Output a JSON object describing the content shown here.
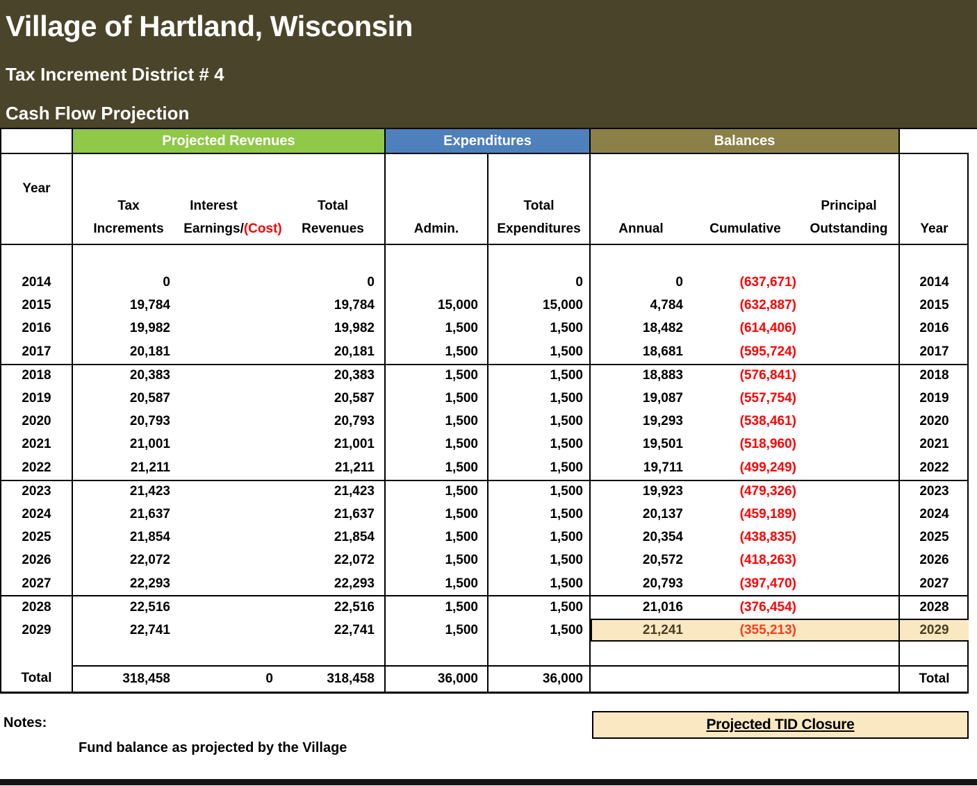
{
  "header": {
    "title": "Village of Hartland, Wisconsin",
    "subtitle1": "Tax Increment District # 4",
    "subtitle2": "Cash Flow Projection"
  },
  "colors": {
    "banner_bg": "#4a452a",
    "revenues_band": "#90c848",
    "expenditures_band": "#4e80bc",
    "balances_band": "#8b8148",
    "highlight_bg": "#fae8c2",
    "negative_red": "#fe0000"
  },
  "table": {
    "bands": {
      "revenues": "Projected Revenues",
      "expenditures": "Expenditures",
      "balances": "Balances"
    },
    "subheaders": {
      "year_left": "Year",
      "tax": "Tax\nIncrements",
      "interest_main": "Interest\nEarnings/",
      "interest_cost": "(Cost)",
      "total_revenues": "Total\nRevenues",
      "admin": "Admin.",
      "total_expenditures": "Total\nExpenditures",
      "annual": "Annual",
      "cumulative": "Cumulative",
      "principal": "Principal\nOutstanding",
      "year_right": "Year"
    },
    "rows": [
      {
        "year": "2014",
        "tax": "0",
        "interest": "",
        "total_rev": "0",
        "admin": "",
        "total_exp": "0",
        "annual": "0",
        "cumulative": "(637,671)",
        "principal": "",
        "group_start": false,
        "highlight": false
      },
      {
        "year": "2015",
        "tax": "19,784",
        "interest": "",
        "total_rev": "19,784",
        "admin": "15,000",
        "total_exp": "15,000",
        "annual": "4,784",
        "cumulative": "(632,887)",
        "principal": "",
        "group_start": false,
        "highlight": false
      },
      {
        "year": "2016",
        "tax": "19,982",
        "interest": "",
        "total_rev": "19,982",
        "admin": "1,500",
        "total_exp": "1,500",
        "annual": "18,482",
        "cumulative": "(614,406)",
        "principal": "",
        "group_start": false,
        "highlight": false
      },
      {
        "year": "2017",
        "tax": "20,181",
        "interest": "",
        "total_rev": "20,181",
        "admin": "1,500",
        "total_exp": "1,500",
        "annual": "18,681",
        "cumulative": "(595,724)",
        "principal": "",
        "group_start": false,
        "highlight": false
      },
      {
        "year": "2018",
        "tax": "20,383",
        "interest": "",
        "total_rev": "20,383",
        "admin": "1,500",
        "total_exp": "1,500",
        "annual": "18,883",
        "cumulative": "(576,841)",
        "principal": "",
        "group_start": true,
        "highlight": false
      },
      {
        "year": "2019",
        "tax": "20,587",
        "interest": "",
        "total_rev": "20,587",
        "admin": "1,500",
        "total_exp": "1,500",
        "annual": "19,087",
        "cumulative": "(557,754)",
        "principal": "",
        "group_start": false,
        "highlight": false
      },
      {
        "year": "2020",
        "tax": "20,793",
        "interest": "",
        "total_rev": "20,793",
        "admin": "1,500",
        "total_exp": "1,500",
        "annual": "19,293",
        "cumulative": "(538,461)",
        "principal": "",
        "group_start": false,
        "highlight": false
      },
      {
        "year": "2021",
        "tax": "21,001",
        "interest": "",
        "total_rev": "21,001",
        "admin": "1,500",
        "total_exp": "1,500",
        "annual": "19,501",
        "cumulative": "(518,960)",
        "principal": "",
        "group_start": false,
        "highlight": false
      },
      {
        "year": "2022",
        "tax": "21,211",
        "interest": "",
        "total_rev": "21,211",
        "admin": "1,500",
        "total_exp": "1,500",
        "annual": "19,711",
        "cumulative": "(499,249)",
        "principal": "",
        "group_start": false,
        "highlight": false
      },
      {
        "year": "2023",
        "tax": "21,423",
        "interest": "",
        "total_rev": "21,423",
        "admin": "1,500",
        "total_exp": "1,500",
        "annual": "19,923",
        "cumulative": "(479,326)",
        "principal": "",
        "group_start": true,
        "highlight": false
      },
      {
        "year": "2024",
        "tax": "21,637",
        "interest": "",
        "total_rev": "21,637",
        "admin": "1,500",
        "total_exp": "1,500",
        "annual": "20,137",
        "cumulative": "(459,189)",
        "principal": "",
        "group_start": false,
        "highlight": false
      },
      {
        "year": "2025",
        "tax": "21,854",
        "interest": "",
        "total_rev": "21,854",
        "admin": "1,500",
        "total_exp": "1,500",
        "annual": "20,354",
        "cumulative": "(438,835)",
        "principal": "",
        "group_start": false,
        "highlight": false
      },
      {
        "year": "2026",
        "tax": "22,072",
        "interest": "",
        "total_rev": "22,072",
        "admin": "1,500",
        "total_exp": "1,500",
        "annual": "20,572",
        "cumulative": "(418,263)",
        "principal": "",
        "group_start": false,
        "highlight": false
      },
      {
        "year": "2027",
        "tax": "22,293",
        "interest": "",
        "total_rev": "22,293",
        "admin": "1,500",
        "total_exp": "1,500",
        "annual": "20,793",
        "cumulative": "(397,470)",
        "principal": "",
        "group_start": false,
        "highlight": false
      },
      {
        "year": "2028",
        "tax": "22,516",
        "interest": "",
        "total_rev": "22,516",
        "admin": "1,500",
        "total_exp": "1,500",
        "annual": "21,016",
        "cumulative": "(376,454)",
        "principal": "",
        "group_start": true,
        "highlight": false
      },
      {
        "year": "2029",
        "tax": "22,741",
        "interest": "",
        "total_rev": "22,741",
        "admin": "1,500",
        "total_exp": "1,500",
        "annual": "21,241",
        "cumulative": "(355,213)",
        "principal": "",
        "group_start": false,
        "highlight": true
      }
    ],
    "total_row": {
      "label": "Total",
      "tax": "318,458",
      "interest": "0",
      "total_rev": "318,458",
      "admin": "36,000",
      "total_exp": "36,000",
      "annual": "",
      "cumulative": "",
      "principal": ""
    }
  },
  "notes": {
    "label": "Notes:",
    "note1": "Fund balance as projected by the Village"
  },
  "callout": {
    "label": "Projected TID Closure"
  }
}
